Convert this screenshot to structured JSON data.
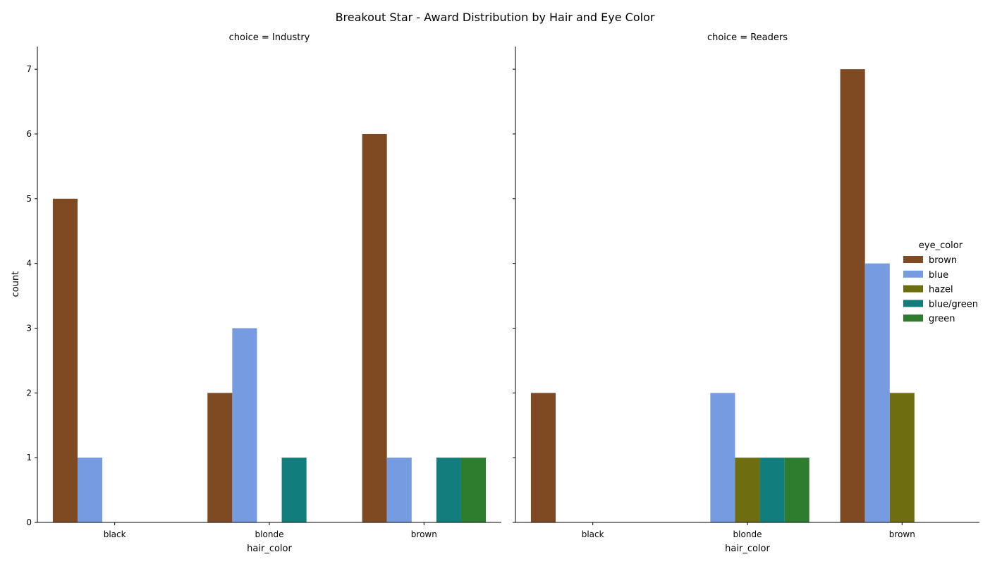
{
  "chart_data": {
    "type": "bar",
    "title": "Breakout Star - Award Distribution by Hair and Eye Color",
    "categories": [
      "black",
      "blonde",
      "brown"
    ],
    "xlabel": "hair_color",
    "ylabel": "count",
    "ylim": [
      0,
      7.35
    ],
    "yticks": [
      "0",
      "1",
      "2",
      "3",
      "4",
      "5",
      "6",
      "7"
    ],
    "legend": {
      "title": "eye_color",
      "placement": "right",
      "entries": [
        {
          "name": "brown",
          "color": "#7f4a22"
        },
        {
          "name": "blue",
          "color": "#779be0"
        },
        {
          "name": "hazel",
          "color": "#6e6e11"
        },
        {
          "name": "blue/green",
          "color": "#117d7d"
        },
        {
          "name": "green",
          "color": "#2e7d2e"
        }
      ]
    },
    "panels": [
      {
        "title": "choice = Industry",
        "series": [
          {
            "name": "brown",
            "values": [
              5,
              2,
              6
            ]
          },
          {
            "name": "blue",
            "values": [
              1,
              3,
              1
            ]
          },
          {
            "name": "hazel",
            "values": [
              0,
              0,
              0
            ]
          },
          {
            "name": "blue/green",
            "values": [
              0,
              1,
              1
            ]
          },
          {
            "name": "green",
            "values": [
              0,
              0,
              1
            ]
          }
        ]
      },
      {
        "title": "choice = Readers",
        "series": [
          {
            "name": "brown",
            "values": [
              2,
              0,
              7
            ]
          },
          {
            "name": "blue",
            "values": [
              0,
              2,
              4
            ]
          },
          {
            "name": "hazel",
            "values": [
              0,
              1,
              2
            ]
          },
          {
            "name": "blue/green",
            "values": [
              0,
              1,
              0
            ]
          },
          {
            "name": "green",
            "values": [
              0,
              1,
              0
            ]
          }
        ]
      }
    ]
  }
}
